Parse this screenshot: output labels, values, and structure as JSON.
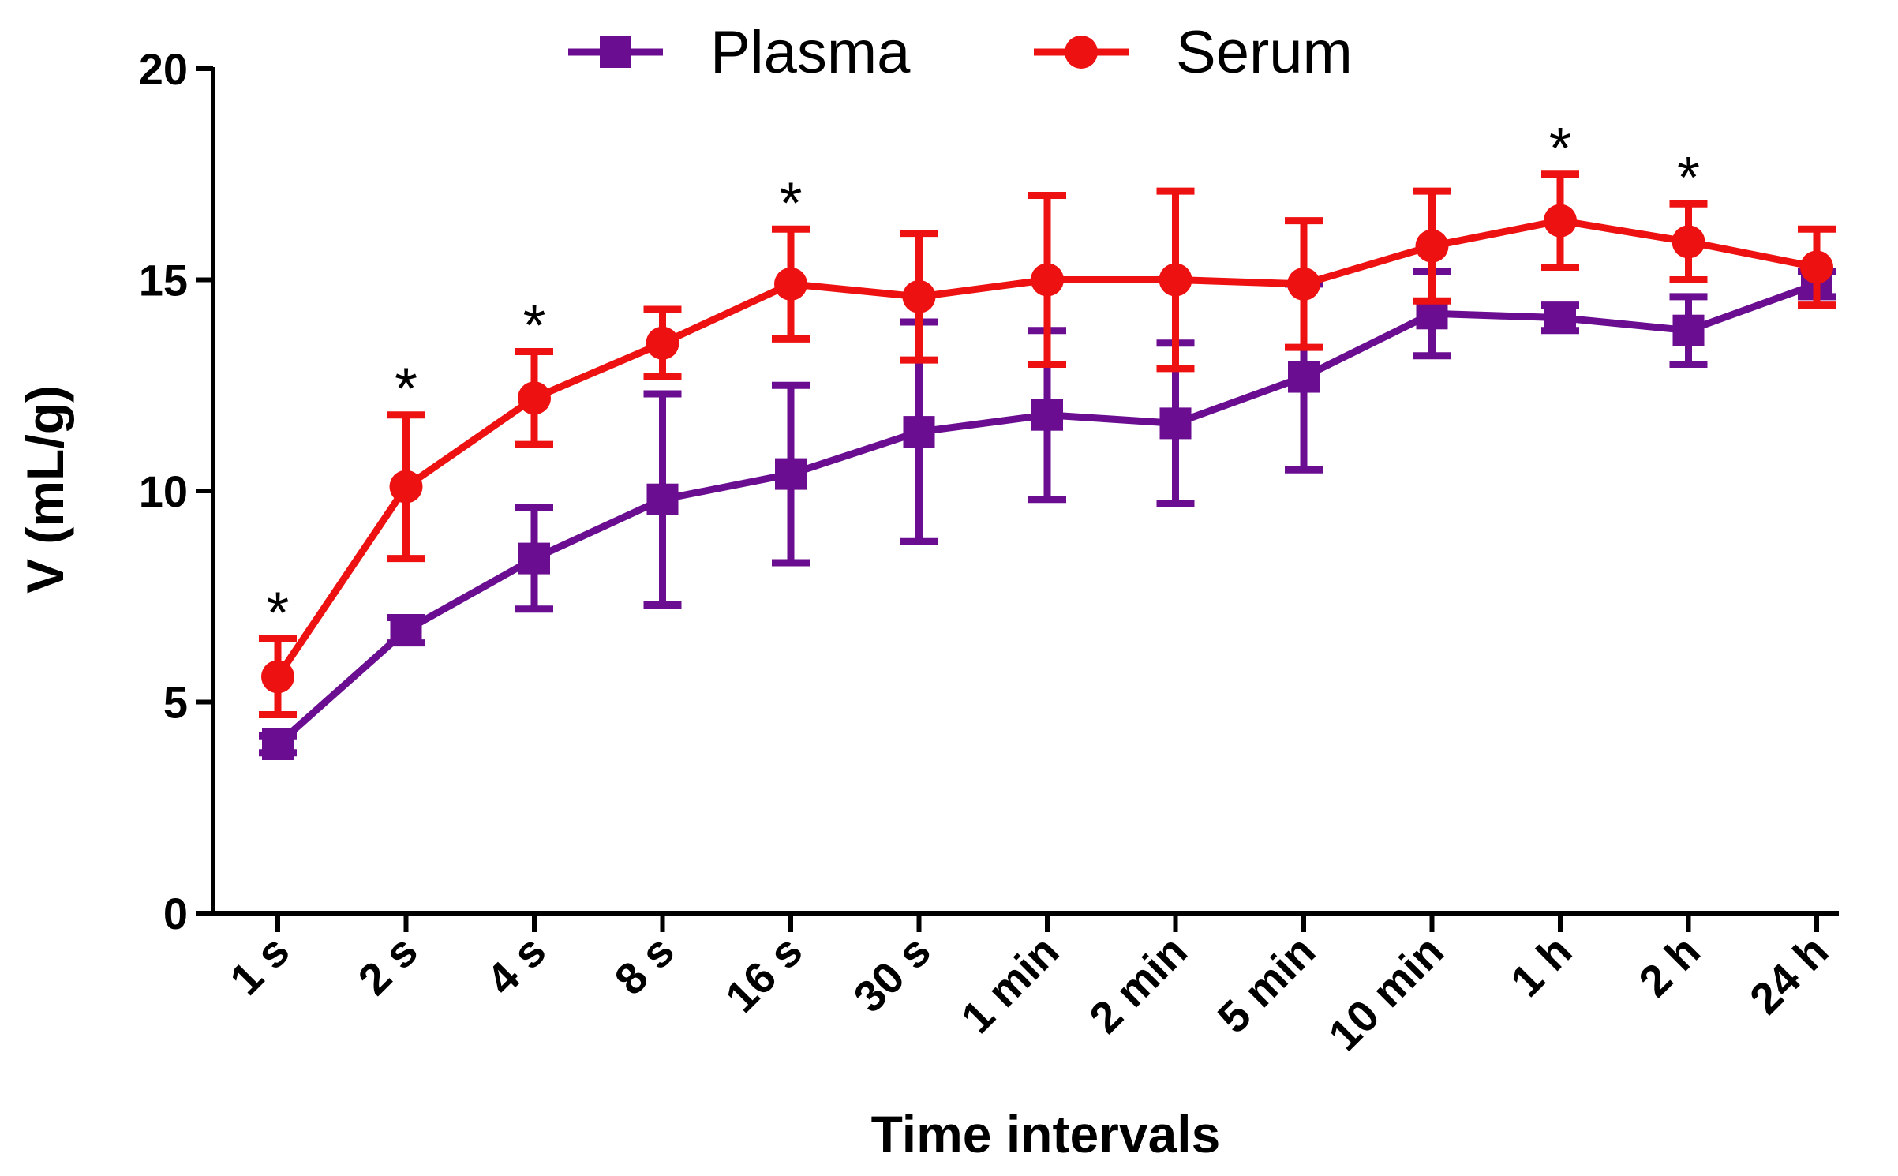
{
  "chart_data": {
    "type": "line",
    "title": "",
    "xlabel": "Time intervals",
    "ylabel": "V (mL/g)",
    "ylim": [
      0,
      20
    ],
    "yticks": [
      0,
      5,
      10,
      15,
      20
    ],
    "grid": false,
    "legend_position": "top-center",
    "categories": [
      "1 s",
      "2 s",
      "4 s",
      "8 s",
      "16 s",
      "30 s",
      "1 min",
      "2 min",
      "5 min",
      "10 min",
      "1 h",
      "2 h",
      "24 h"
    ],
    "series": [
      {
        "name": "Plasma",
        "color": "#6a0d91",
        "marker": "square",
        "values": [
          4.0,
          6.7,
          8.4,
          9.8,
          10.4,
          11.4,
          11.8,
          11.6,
          12.7,
          14.2,
          14.1,
          13.8,
          14.9
        ],
        "errors": [
          0.2,
          0.3,
          1.2,
          2.5,
          2.1,
          2.6,
          2.0,
          1.9,
          2.2,
          1.0,
          0.3,
          0.8,
          0.3
        ]
      },
      {
        "name": "Serum",
        "color": "#ee1111",
        "marker": "circle",
        "values": [
          5.6,
          10.1,
          12.2,
          13.5,
          14.9,
          14.6,
          15.0,
          15.0,
          14.9,
          15.8,
          16.4,
          15.9,
          15.3
        ],
        "errors": [
          0.9,
          1.7,
          1.1,
          0.8,
          1.3,
          1.5,
          2.0,
          2.1,
          1.5,
          1.3,
          1.1,
          0.9,
          0.9
        ]
      }
    ],
    "significance": {
      "symbol": "*",
      "categories": [
        "1 s",
        "2 s",
        "4 s",
        "16 s",
        "1 h",
        "2 h"
      ]
    }
  }
}
